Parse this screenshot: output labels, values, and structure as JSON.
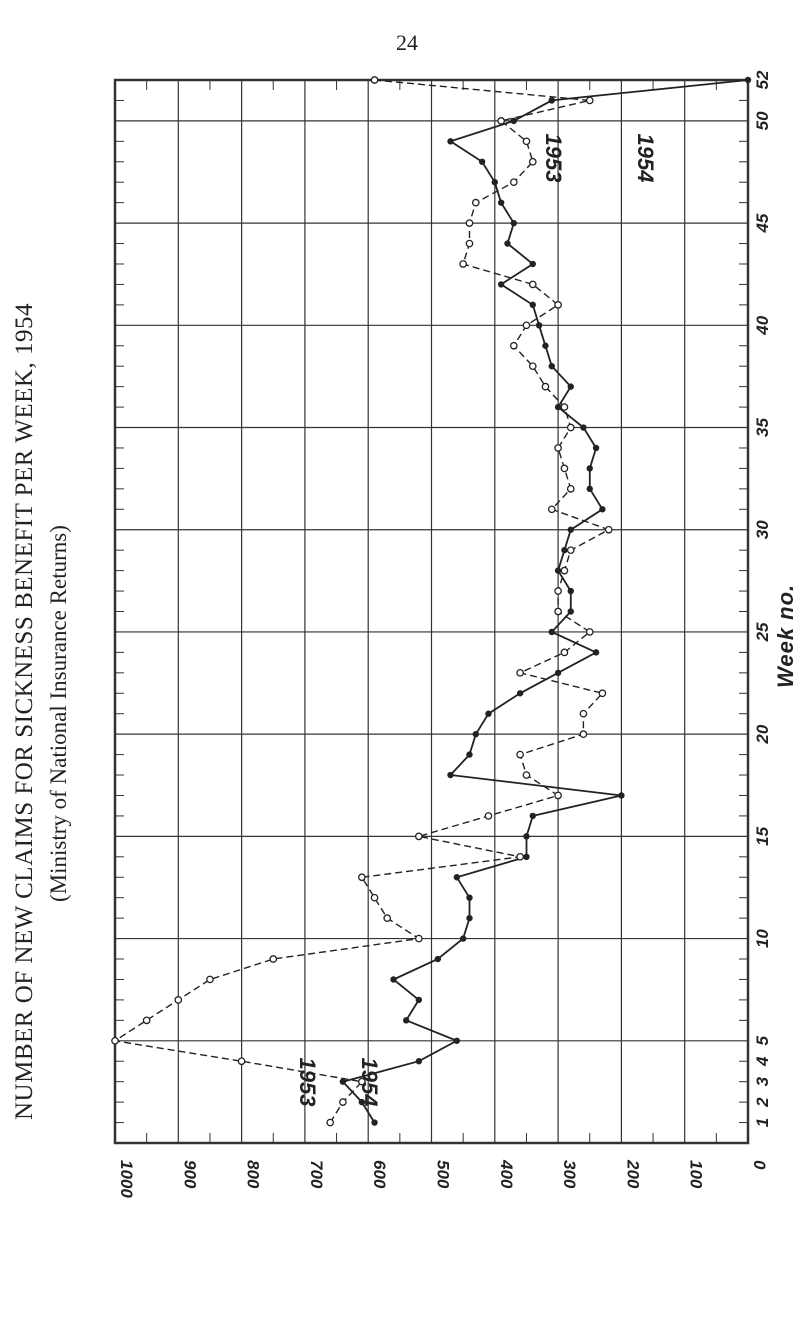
{
  "page": {
    "number": "24"
  },
  "chart_data": {
    "type": "line",
    "title": "NUMBER OF NEW CLAIMS FOR SICKNESS BENEFIT PER WEEK, 1954",
    "subtitle": "(Ministry of National Insurance Returns)",
    "xlabel": "Week no.",
    "ylabel": "",
    "xlim": [
      0,
      52
    ],
    "ylim": [
      0,
      1000
    ],
    "x_ticks": [
      {
        "value": 1,
        "label": "1"
      },
      {
        "value": 2,
        "label": "2"
      },
      {
        "value": 3,
        "label": "3"
      },
      {
        "value": 4,
        "label": "4"
      },
      {
        "value": 5,
        "label": "5"
      },
      {
        "value": 10,
        "label": "10"
      },
      {
        "value": 15,
        "label": "15"
      },
      {
        "value": 20,
        "label": "20"
      },
      {
        "value": 25,
        "label": "25"
      },
      {
        "value": 30,
        "label": "30"
      },
      {
        "value": 35,
        "label": "35"
      },
      {
        "value": 40,
        "label": "40"
      },
      {
        "value": 45,
        "label": "45"
      },
      {
        "value": 50,
        "label": "50"
      },
      {
        "value": 52,
        "label": "52"
      }
    ],
    "y_ticks": [
      {
        "value": 0,
        "label": "0"
      },
      {
        "value": 100,
        "label": "100"
      },
      {
        "value": 200,
        "label": "200"
      },
      {
        "value": 300,
        "label": "300"
      },
      {
        "value": 400,
        "label": "400"
      },
      {
        "value": 500,
        "label": "500"
      },
      {
        "value": 600,
        "label": "600"
      },
      {
        "value": 700,
        "label": "700"
      },
      {
        "value": 800,
        "label": "800"
      },
      {
        "value": 900,
        "label": "900"
      },
      {
        "value": 1000,
        "label": "1000"
      }
    ],
    "grid": true,
    "series": [
      {
        "name": "1954",
        "style": "solid",
        "marker": "filled-circle",
        "x": [
          1,
          2,
          3,
          4,
          5,
          6,
          7,
          8,
          9,
          10,
          11,
          12,
          13,
          14,
          15,
          16,
          17,
          18,
          19,
          20,
          21,
          22,
          23,
          24,
          25,
          26,
          27,
          28,
          29,
          30,
          31,
          32,
          33,
          34,
          35,
          36,
          37,
          38,
          39,
          40,
          41,
          42,
          43,
          44,
          45,
          46,
          47,
          48,
          49,
          50,
          51,
          52
        ],
        "y": [
          590,
          610,
          640,
          520,
          460,
          540,
          520,
          560,
          490,
          450,
          440,
          440,
          460,
          350,
          350,
          340,
          200,
          470,
          440,
          430,
          410,
          360,
          300,
          240,
          310,
          280,
          280,
          300,
          290,
          280,
          230,
          250,
          250,
          240,
          260,
          300,
          280,
          310,
          320,
          330,
          340,
          390,
          340,
          380,
          370,
          390,
          400,
          420,
          470,
          370,
          310,
          0
        ]
      },
      {
        "name": "1953",
        "style": "dashed",
        "marker": "open-circle",
        "x": [
          1,
          2,
          3,
          4,
          5,
          6,
          7,
          8,
          9,
          10,
          11,
          12,
          13,
          14,
          15,
          16,
          17,
          18,
          19,
          20,
          21,
          22,
          23,
          24,
          25,
          26,
          27,
          28,
          29,
          30,
          31,
          32,
          33,
          34,
          35,
          36,
          37,
          38,
          39,
          40,
          41,
          42,
          43,
          44,
          45,
          46,
          47,
          48,
          49,
          50,
          51,
          52
        ],
        "y": [
          660,
          640,
          610,
          800,
          1000,
          950,
          900,
          850,
          750,
          520,
          570,
          590,
          610,
          360,
          520,
          410,
          300,
          350,
          360,
          260,
          260,
          230,
          360,
          290,
          250,
          300,
          300,
          290,
          280,
          220,
          310,
          280,
          290,
          300,
          280,
          290,
          320,
          340,
          370,
          350,
          300,
          340,
          450,
          440,
          440,
          430,
          370,
          340,
          350,
          390,
          250,
          590
        ]
      }
    ],
    "annotations": [
      {
        "text": "1953",
        "near_series": "1953",
        "position": "bottom-left"
      },
      {
        "text": "1954",
        "near_series": "1954",
        "position": "bottom-left"
      },
      {
        "text": "1953",
        "near_series": "1953",
        "position": "top-right"
      },
      {
        "text": "1954",
        "near_series": "1954",
        "position": "top-right"
      }
    ]
  },
  "colors": {
    "ink": "#222222",
    "grid": "#333333",
    "background": "#ffffff"
  }
}
